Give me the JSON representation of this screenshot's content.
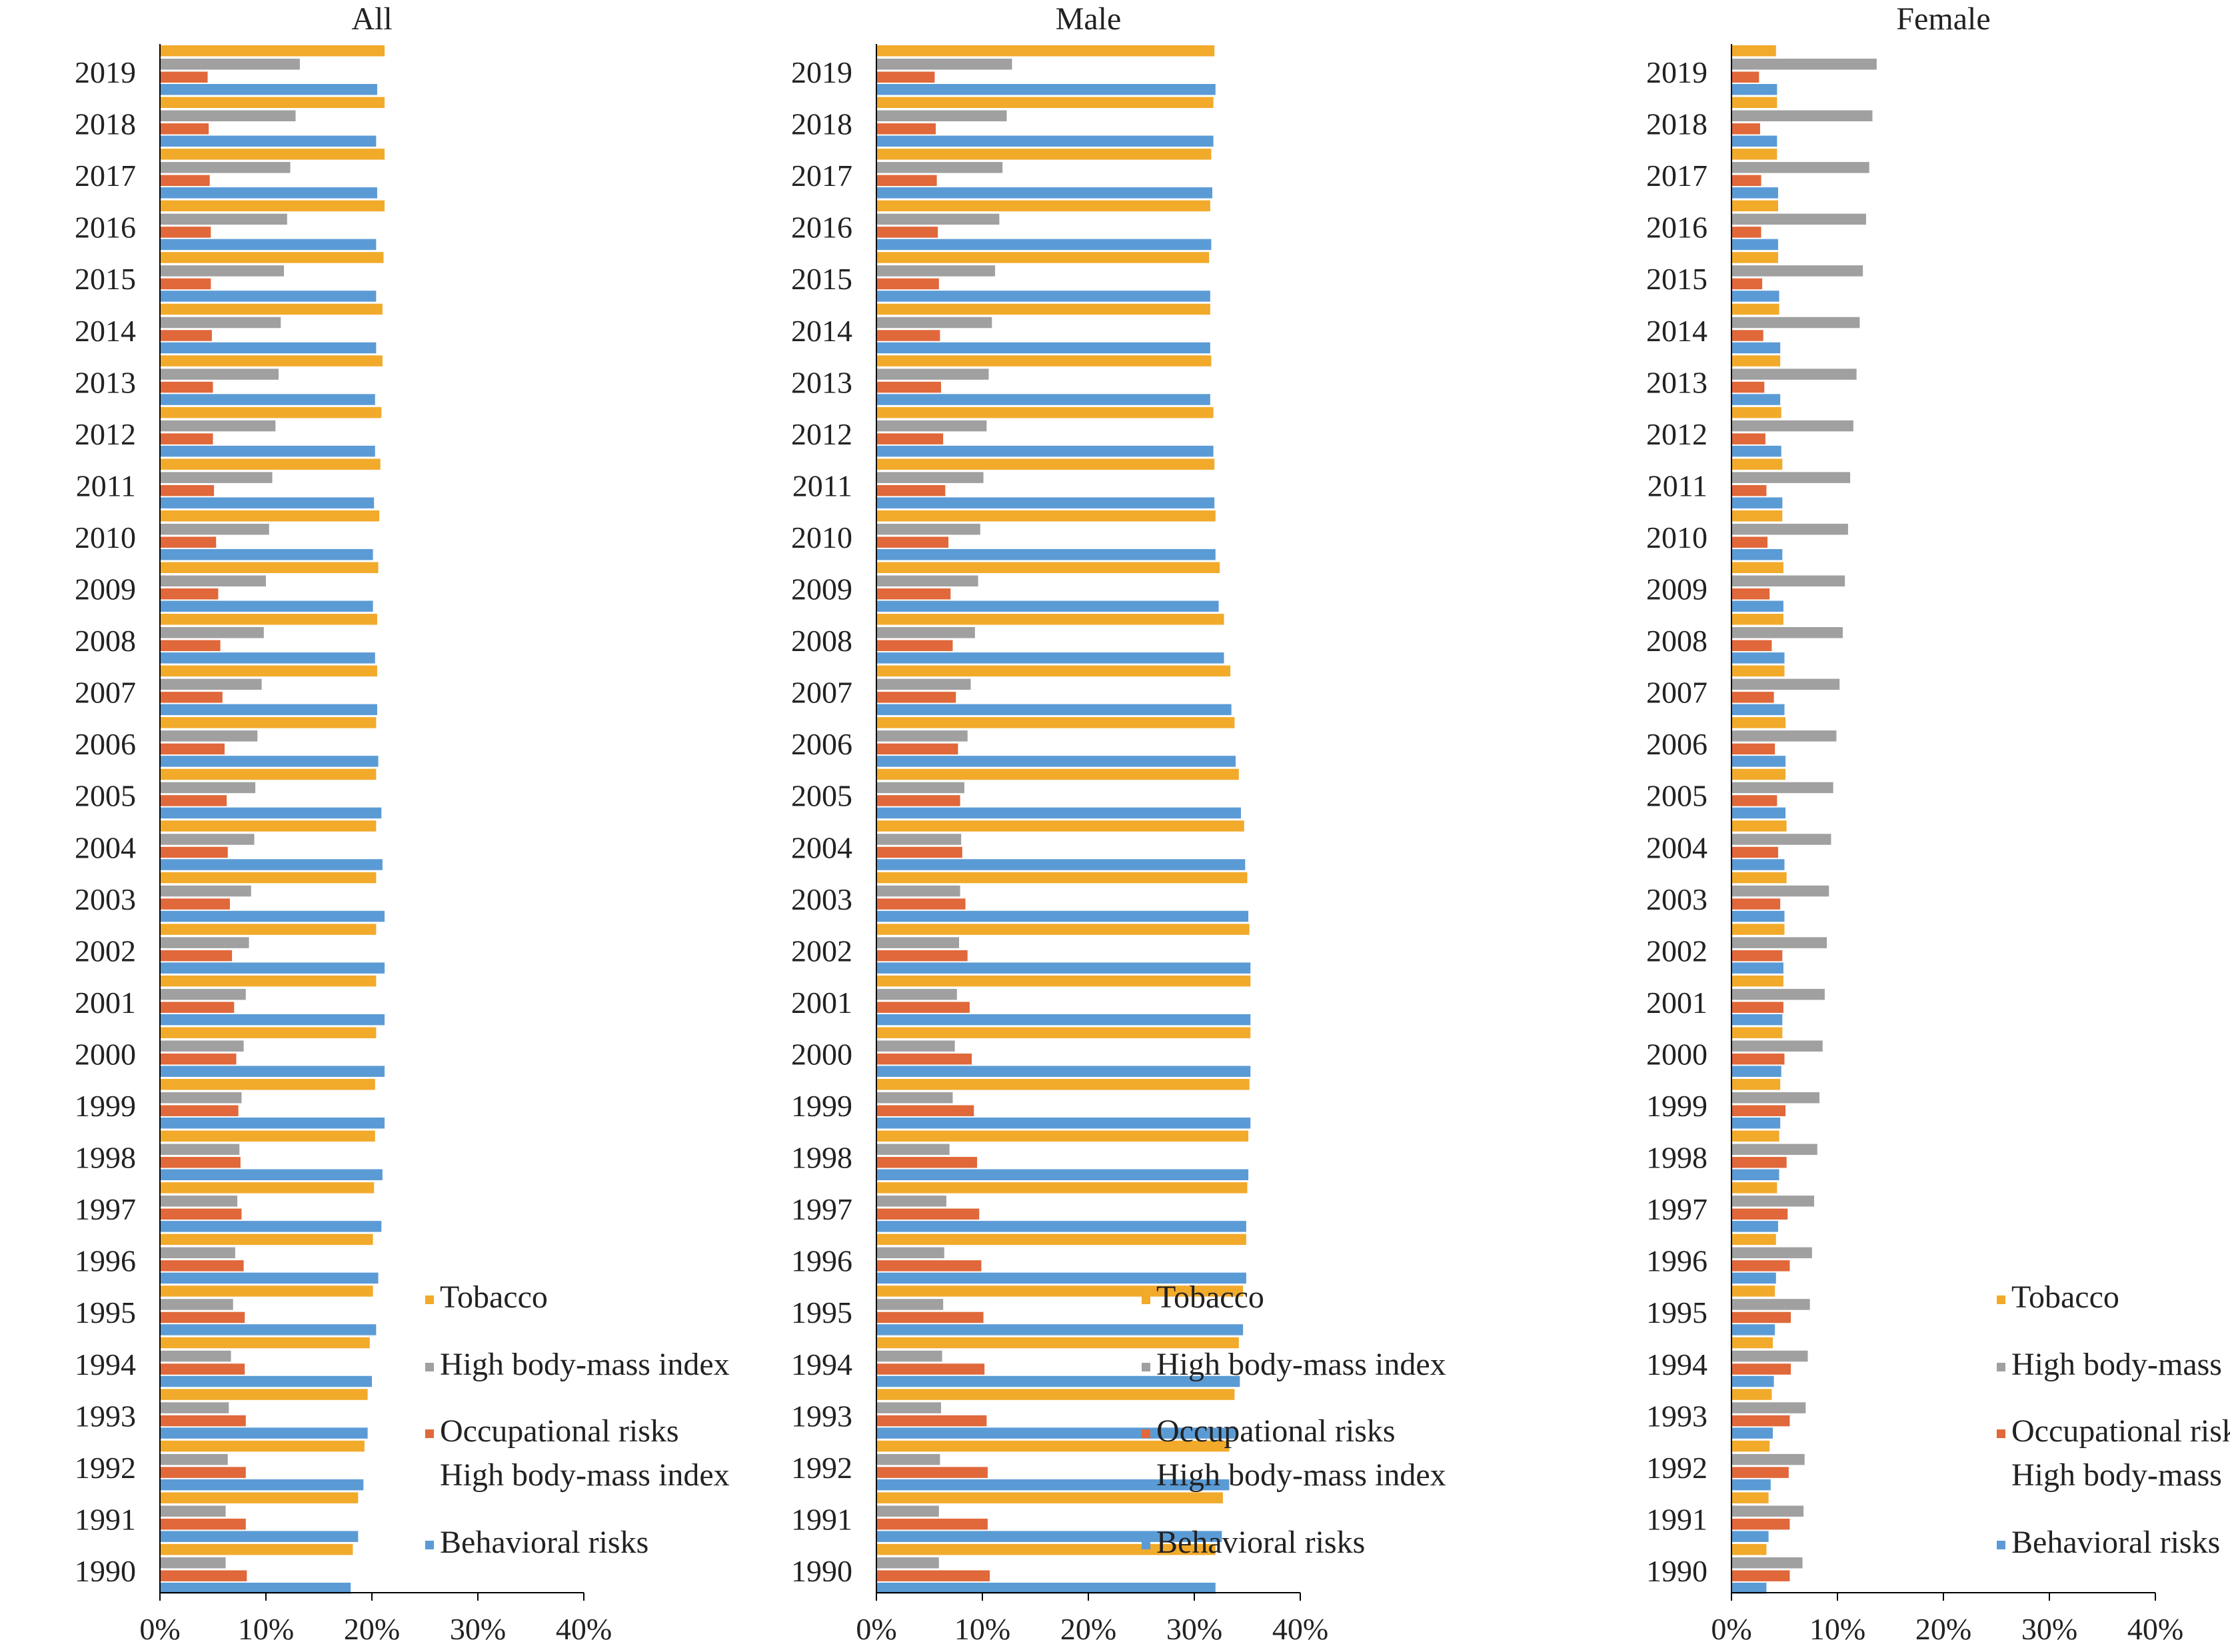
{
  "chart_data": [
    {
      "type": "bar",
      "orientation": "horizontal",
      "title": "All",
      "xlim": [
        0,
        40
      ],
      "xticks": [
        "0%",
        "10%",
        "20%",
        "30%",
        "40%"
      ],
      "grid": false,
      "legend_position": "bottom-right",
      "categories": [
        "2019",
        "2018",
        "2017",
        "2016",
        "2015",
        "2014",
        "2013",
        "2012",
        "2011",
        "2010",
        "2009",
        "2008",
        "2007",
        "2006",
        "2005",
        "2004",
        "2003",
        "2002",
        "2001",
        "2000",
        "1999",
        "1998",
        "1997",
        "1996",
        "1995",
        "1994",
        "1993",
        "1992",
        "1991",
        "1990"
      ],
      "series": [
        {
          "name": "Tobacco",
          "values": [
            21.2,
            21.2,
            21.2,
            21.2,
            21.1,
            21.0,
            21.0,
            20.9,
            20.8,
            20.7,
            20.6,
            20.5,
            20.5,
            20.4,
            20.4,
            20.4,
            20.4,
            20.4,
            20.4,
            20.4,
            20.3,
            20.3,
            20.2,
            20.1,
            20.1,
            19.8,
            19.6,
            19.3,
            18.7,
            18.2
          ]
        },
        {
          "name": "High body-mass index",
          "values": [
            13.2,
            12.8,
            12.3,
            12.0,
            11.7,
            11.4,
            11.2,
            10.9,
            10.6,
            10.3,
            10.0,
            9.8,
            9.6,
            9.2,
            9.0,
            8.9,
            8.6,
            8.4,
            8.1,
            7.9,
            7.7,
            7.5,
            7.3,
            7.1,
            6.9,
            6.7,
            6.5,
            6.4,
            6.2,
            6.2
          ]
        },
        {
          "name": "Occupational risks",
          "values": [
            4.5,
            4.6,
            4.7,
            4.8,
            4.8,
            4.9,
            5.0,
            5.0,
            5.1,
            5.3,
            5.5,
            5.7,
            5.9,
            6.1,
            6.3,
            6.4,
            6.6,
            6.8,
            7.0,
            7.2,
            7.4,
            7.6,
            7.7,
            7.9,
            8.0,
            8.0,
            8.1,
            8.1,
            8.1,
            8.2
          ]
        },
        {
          "name": "Behavioral risks",
          "values": [
            20.5,
            20.4,
            20.5,
            20.4,
            20.4,
            20.4,
            20.3,
            20.3,
            20.2,
            20.1,
            20.1,
            20.3,
            20.5,
            20.6,
            20.9,
            21.0,
            21.2,
            21.2,
            21.2,
            21.2,
            21.2,
            21.0,
            20.9,
            20.6,
            20.4,
            20.0,
            19.6,
            19.2,
            18.7,
            18.0
          ]
        }
      ],
      "legend": [
        "Tobacco",
        "High body-mass index",
        "Occupational risks\nHigh body-mass index",
        "Behavioral risks"
      ]
    },
    {
      "type": "bar",
      "orientation": "horizontal",
      "title": "Male",
      "xlim": [
        0,
        40
      ],
      "xticks": [
        "0%",
        "10%",
        "20%",
        "30%",
        "40%"
      ],
      "grid": false,
      "legend_position": "bottom-right",
      "categories": [
        "2019",
        "2018",
        "2017",
        "2016",
        "2015",
        "2014",
        "2013",
        "2012",
        "2011",
        "2010",
        "2009",
        "2008",
        "2007",
        "2006",
        "2005",
        "2004",
        "2003",
        "2002",
        "2001",
        "2000",
        "1999",
        "1998",
        "1997",
        "1996",
        "1995",
        "1994",
        "1993",
        "1992",
        "1991",
        "1990"
      ],
      "series": [
        {
          "name": "Tobacco",
          "values": [
            31.9,
            31.8,
            31.6,
            31.5,
            31.4,
            31.5,
            31.6,
            31.8,
            31.9,
            32.0,
            32.4,
            32.8,
            33.4,
            33.8,
            34.2,
            34.7,
            35.0,
            35.2,
            35.3,
            35.3,
            35.2,
            35.1,
            35.0,
            34.9,
            34.6,
            34.2,
            33.8,
            33.3,
            32.7,
            32.0
          ]
        },
        {
          "name": "High body-mass index",
          "values": [
            12.8,
            12.3,
            11.9,
            11.6,
            11.2,
            10.9,
            10.6,
            10.4,
            10.1,
            9.8,
            9.6,
            9.3,
            8.9,
            8.6,
            8.3,
            8.0,
            7.9,
            7.8,
            7.6,
            7.4,
            7.2,
            6.9,
            6.6,
            6.4,
            6.3,
            6.2,
            6.1,
            6.0,
            5.9,
            5.9
          ]
        },
        {
          "name": "Occupational risks",
          "values": [
            5.5,
            5.6,
            5.7,
            5.8,
            5.9,
            6.0,
            6.1,
            6.3,
            6.5,
            6.8,
            7.0,
            7.2,
            7.5,
            7.7,
            7.9,
            8.1,
            8.4,
            8.6,
            8.8,
            9.0,
            9.2,
            9.5,
            9.7,
            9.9,
            10.1,
            10.2,
            10.4,
            10.5,
            10.5,
            10.7
          ]
        },
        {
          "name": "Behavioral risks",
          "values": [
            32.0,
            31.8,
            31.7,
            31.6,
            31.5,
            31.5,
            31.5,
            31.8,
            31.9,
            32.0,
            32.3,
            32.8,
            33.5,
            33.9,
            34.4,
            34.8,
            35.1,
            35.3,
            35.3,
            35.3,
            35.3,
            35.1,
            34.9,
            34.9,
            34.6,
            34.3,
            33.9,
            33.3,
            32.6,
            32.0
          ]
        }
      ],
      "legend": [
        "Tobacco",
        "High body-mass index",
        "Occupational risks\nHigh body-mass index",
        "Behavioral risks"
      ]
    },
    {
      "type": "bar",
      "orientation": "horizontal",
      "title": "Female",
      "xlim": [
        0,
        40
      ],
      "xticks": [
        "0%",
        "10%",
        "20%",
        "30%",
        "40%"
      ],
      "grid": false,
      "legend_position": "bottom-right",
      "categories": [
        "2019",
        "2018",
        "2017",
        "2016",
        "2015",
        "2014",
        "2013",
        "2012",
        "2011",
        "2010",
        "2009",
        "2008",
        "2007",
        "2006",
        "2005",
        "2004",
        "2003",
        "2002",
        "2001",
        "2000",
        "1999",
        "1998",
        "1997",
        "1996",
        "1995",
        "1994",
        "1993",
        "1992",
        "1991",
        "1990"
      ],
      "series": [
        {
          "name": "Tobacco",
          "values": [
            4.2,
            4.3,
            4.3,
            4.4,
            4.4,
            4.5,
            4.6,
            4.7,
            4.8,
            4.8,
            4.9,
            4.9,
            5.0,
            5.1,
            5.1,
            5.2,
            5.2,
            5.0,
            4.9,
            4.8,
            4.6,
            4.5,
            4.3,
            4.2,
            4.1,
            3.9,
            3.8,
            3.6,
            3.5,
            3.3
          ]
        },
        {
          "name": "High body-mass index",
          "values": [
            13.7,
            13.3,
            13.0,
            12.7,
            12.4,
            12.1,
            11.8,
            11.5,
            11.2,
            11.0,
            10.7,
            10.5,
            10.2,
            9.9,
            9.6,
            9.4,
            9.2,
            9.0,
            8.8,
            8.6,
            8.3,
            8.1,
            7.8,
            7.6,
            7.4,
            7.2,
            7.0,
            6.9,
            6.8,
            6.7
          ]
        },
        {
          "name": "Occupational risks",
          "values": [
            2.6,
            2.7,
            2.8,
            2.8,
            2.9,
            3.0,
            3.1,
            3.2,
            3.3,
            3.4,
            3.6,
            3.8,
            4.0,
            4.1,
            4.3,
            4.4,
            4.6,
            4.8,
            4.9,
            5.0,
            5.1,
            5.2,
            5.3,
            5.5,
            5.6,
            5.6,
            5.5,
            5.4,
            5.5,
            5.5
          ]
        },
        {
          "name": "Behavioral risks",
          "values": [
            4.3,
            4.3,
            4.4,
            4.4,
            4.5,
            4.6,
            4.6,
            4.7,
            4.8,
            4.8,
            4.9,
            5.0,
            5.0,
            5.1,
            5.1,
            5.0,
            5.0,
            4.9,
            4.8,
            4.7,
            4.6,
            4.5,
            4.4,
            4.2,
            4.1,
            4.0,
            3.9,
            3.7,
            3.5,
            3.3
          ]
        }
      ],
      "legend": [
        "Tobacco",
        "High body-mass index",
        "Occupational risks\nHigh body-mass index",
        "Behavioral risks"
      ]
    }
  ],
  "colors": {
    "Tobacco": "#F2AA2B",
    "High body-mass index": "#A0A0A0",
    "Occupational risks": "#E0683A",
    "Behavioral risks": "#5B9BD5",
    "axis": "#000000",
    "text": "#222222"
  }
}
